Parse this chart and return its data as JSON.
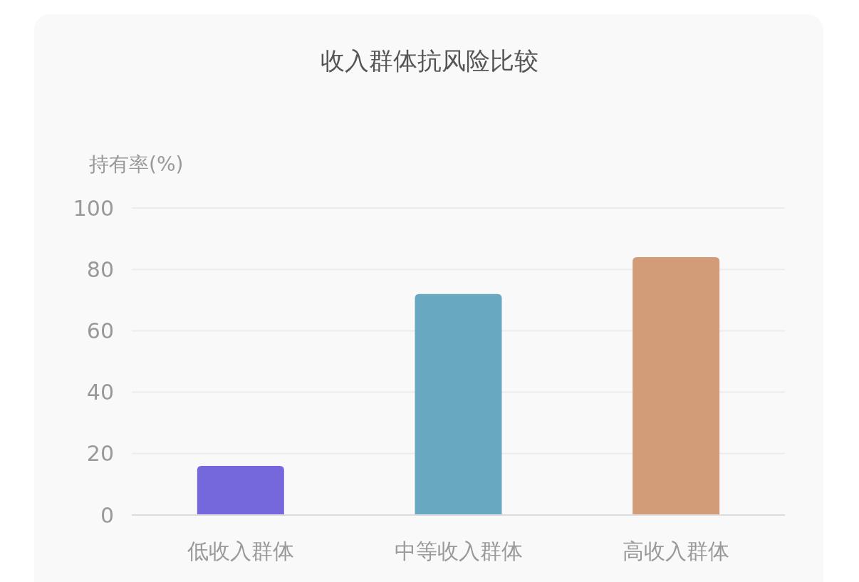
{
  "chart_data": {
    "type": "bar",
    "title": "收入群体抗风险比较",
    "ylabel": "持有率(%)",
    "categories": [
      "低收入群体",
      "中等收入群体",
      "高收入群体"
    ],
    "values": [
      16,
      72,
      84
    ],
    "colors": [
      "#7468dc",
      "#68a9c1",
      "#d39c78"
    ],
    "ylim": [
      0,
      100
    ],
    "yticks": [
      0,
      20,
      40,
      60,
      80,
      100
    ],
    "grid": "y"
  }
}
